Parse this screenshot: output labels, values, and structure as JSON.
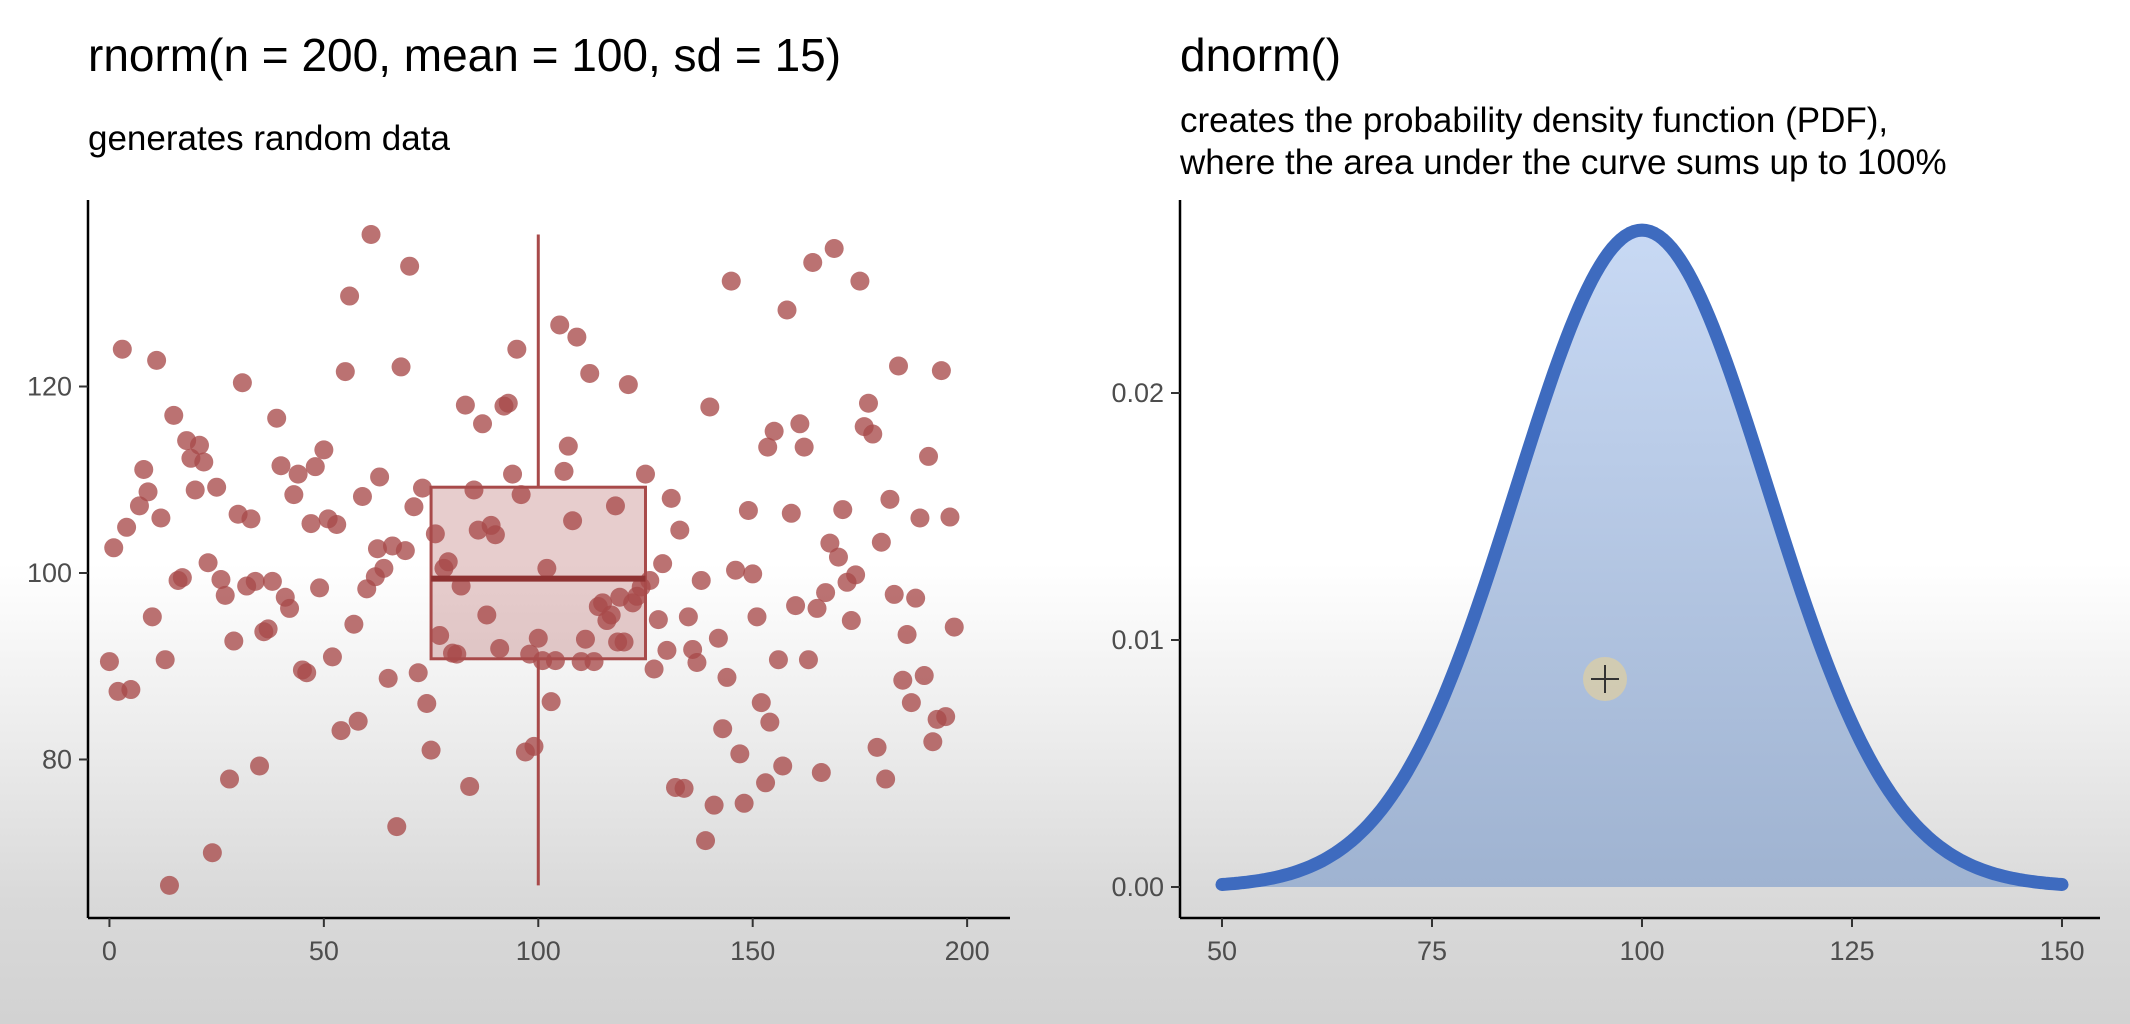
{
  "left": {
    "title": "rnorm(n = 200, mean = 100, sd = 15)",
    "subtitle": "generates random data"
  },
  "right": {
    "title": "dnorm()",
    "subtitle_line1": "creates the probability density function (PDF),",
    "subtitle_line2": "where the area under the curve sums up to 100%"
  },
  "chart_data": [
    {
      "type": "scatter",
      "title": "rnorm(n = 200, mean = 100, sd = 15)",
      "subtitle": "generates random data",
      "xlim": [
        -5,
        210
      ],
      "ylim": [
        63,
        140
      ],
      "x_ticks": [
        0,
        50,
        100,
        150,
        200
      ],
      "y_ticks": [
        80,
        100,
        120
      ],
      "grid": false,
      "point_color": "#a84a4a",
      "boxplot": {
        "x_center": 100,
        "x_range": [
          75,
          125
        ],
        "q1": 90.8,
        "median": 99.4,
        "q3": 109.2,
        "whisker_low": 66.5,
        "whisker_high": 136.3,
        "color": "#a84a4a"
      },
      "points": [
        [
          0,
          90.5
        ],
        [
          1,
          102.7
        ],
        [
          2,
          87.3
        ],
        [
          3,
          124.0
        ],
        [
          4,
          104.9
        ],
        [
          5,
          87.5
        ],
        [
          7,
          107.2
        ],
        [
          8,
          111.1
        ],
        [
          9,
          108.7
        ],
        [
          10,
          95.3
        ],
        [
          11,
          122.8
        ],
        [
          12,
          105.9
        ],
        [
          13,
          90.7
        ],
        [
          14,
          66.5
        ],
        [
          15,
          116.9
        ],
        [
          16,
          99.2
        ],
        [
          17,
          99.5
        ],
        [
          18,
          114.2
        ],
        [
          19,
          112.3
        ],
        [
          20,
          108.9
        ],
        [
          21,
          113.7
        ],
        [
          22,
          111.9
        ],
        [
          23,
          101.1
        ],
        [
          24,
          70.0
        ],
        [
          25,
          109.2
        ],
        [
          26,
          99.3
        ],
        [
          27,
          97.6
        ],
        [
          28,
          77.9
        ],
        [
          29,
          92.7
        ],
        [
          30,
          106.3
        ],
        [
          31,
          120.4
        ],
        [
          32,
          98.6
        ],
        [
          33,
          105.8
        ],
        [
          34,
          99.1
        ],
        [
          35,
          79.3
        ],
        [
          36,
          93.7
        ],
        [
          37,
          94.0
        ],
        [
          38,
          99.1
        ],
        [
          39,
          116.6
        ],
        [
          40,
          111.5
        ],
        [
          41,
          97.4
        ],
        [
          42,
          96.2
        ],
        [
          43,
          108.4
        ],
        [
          44,
          110.6
        ],
        [
          45,
          89.6
        ],
        [
          46,
          89.3
        ],
        [
          47,
          105.3
        ],
        [
          48,
          111.4
        ],
        [
          49,
          98.4
        ],
        [
          50,
          113.2
        ],
        [
          51,
          105.8
        ],
        [
          52,
          91.0
        ],
        [
          53,
          105.2
        ],
        [
          54,
          83.1
        ],
        [
          55,
          121.6
        ],
        [
          56,
          129.7
        ],
        [
          57,
          94.5
        ],
        [
          58,
          84.1
        ],
        [
          59,
          108.2
        ],
        [
          60,
          98.3
        ],
        [
          61,
          136.3
        ],
        [
          62,
          99.6
        ],
        [
          63,
          110.3
        ],
        [
          64,
          100.5
        ],
        [
          65,
          88.7
        ],
        [
          66,
          102.9
        ],
        [
          67,
          72.8
        ],
        [
          68,
          122.1
        ],
        [
          69,
          102.4
        ],
        [
          70,
          132.9
        ],
        [
          71,
          107.1
        ],
        [
          72,
          89.3
        ],
        [
          73,
          109.1
        ],
        [
          74,
          86.0
        ],
        [
          75,
          81.0
        ],
        [
          76,
          104.2
        ],
        [
          77,
          93.3
        ],
        [
          78,
          100.5
        ],
        [
          79,
          101.2
        ],
        [
          80,
          91.4
        ],
        [
          81,
          91.3
        ],
        [
          82,
          98.6
        ],
        [
          83,
          118.0
        ],
        [
          84,
          77.1
        ],
        [
          85,
          108.9
        ],
        [
          86,
          104.6
        ],
        [
          87,
          116.0
        ],
        [
          88,
          95.5
        ],
        [
          89,
          105.1
        ],
        [
          90,
          104.1
        ],
        [
          91,
          91.9
        ],
        [
          92,
          117.9
        ],
        [
          93,
          118.2
        ],
        [
          94,
          110.6
        ],
        [
          95,
          124.0
        ],
        [
          96,
          108.4
        ],
        [
          97,
          80.8
        ],
        [
          98,
          91.3
        ],
        [
          99,
          81.4
        ],
        [
          100,
          93.0
        ],
        [
          101,
          90.6
        ],
        [
          102,
          100.5
        ],
        [
          103,
          86.2
        ],
        [
          104,
          90.6
        ],
        [
          105,
          126.6
        ],
        [
          106,
          110.9
        ],
        [
          107,
          113.6
        ],
        [
          108,
          105.6
        ],
        [
          109,
          125.3
        ],
        [
          110,
          90.5
        ],
        [
          111,
          92.9
        ],
        [
          112,
          121.4
        ],
        [
          113,
          90.5
        ],
        [
          114,
          96.4
        ],
        [
          115,
          96.8
        ],
        [
          116,
          94.9
        ],
        [
          117,
          95.5
        ],
        [
          118,
          107.2
        ],
        [
          119,
          97.4
        ],
        [
          120,
          92.6
        ],
        [
          121,
          120.2
        ],
        [
          122,
          96.8
        ],
        [
          123,
          97.5
        ],
        [
          124,
          98.5
        ],
        [
          125,
          110.6
        ],
        [
          126,
          99.2
        ],
        [
          127,
          89.7
        ],
        [
          128,
          95.0
        ],
        [
          129,
          101.0
        ],
        [
          130,
          91.7
        ],
        [
          131,
          108.0
        ],
        [
          132,
          77.0
        ],
        [
          133,
          104.6
        ],
        [
          134,
          76.9
        ],
        [
          135,
          95.3
        ],
        [
          136,
          91.8
        ],
        [
          137,
          90.4
        ],
        [
          138,
          99.2
        ],
        [
          139,
          71.3
        ],
        [
          140,
          117.8
        ],
        [
          141,
          75.1
        ],
        [
          142,
          93.0
        ],
        [
          143,
          83.3
        ],
        [
          144,
          88.8
        ],
        [
          145,
          131.3
        ],
        [
          146,
          100.3
        ],
        [
          147,
          80.6
        ],
        [
          148,
          75.3
        ],
        [
          149,
          106.7
        ],
        [
          150,
          99.9
        ],
        [
          151,
          95.3
        ],
        [
          152,
          86.1
        ],
        [
          153,
          77.5
        ],
        [
          154,
          84.0
        ],
        [
          155,
          115.2
        ],
        [
          156,
          90.7
        ],
        [
          157,
          79.3
        ],
        [
          158,
          128.2
        ],
        [
          159,
          106.4
        ],
        [
          160,
          96.5
        ],
        [
          161,
          116.0
        ],
        [
          162,
          113.5
        ],
        [
          163,
          90.7
        ],
        [
          164,
          133.3
        ],
        [
          165,
          96.2
        ],
        [
          166,
          78.6
        ],
        [
          167,
          97.9
        ],
        [
          168,
          103.2
        ],
        [
          169,
          134.8
        ],
        [
          170,
          101.7
        ],
        [
          171,
          106.8
        ],
        [
          172,
          99.0
        ],
        [
          173,
          94.9
        ],
        [
          174,
          99.8
        ],
        [
          175,
          131.3
        ],
        [
          176,
          115.7
        ],
        [
          177,
          118.2
        ],
        [
          178,
          114.9
        ],
        [
          179,
          81.3
        ],
        [
          180,
          103.3
        ],
        [
          181,
          77.9
        ],
        [
          182,
          107.9
        ],
        [
          183,
          97.7
        ],
        [
          184,
          122.2
        ],
        [
          185,
          88.5
        ],
        [
          186,
          93.4
        ],
        [
          187,
          86.1
        ],
        [
          188,
          97.3
        ],
        [
          189,
          105.9
        ],
        [
          190,
          89.0
        ],
        [
          191,
          112.5
        ],
        [
          192,
          81.9
        ],
        [
          193,
          84.3
        ],
        [
          194,
          121.7
        ],
        [
          195,
          84.6
        ],
        [
          196,
          106.0
        ],
        [
          197,
          94.2
        ],
        [
          62.5,
          102.6
        ],
        [
          118.5,
          92.6
        ],
        [
          153.5,
          113.5
        ]
      ]
    },
    {
      "type": "area",
      "title": "dnorm()",
      "subtitle": "creates the probability density function (PDF), where the area under the curve sums up to 100%",
      "function": "dnorm",
      "mean": 100,
      "sd": 15,
      "xlim": [
        50,
        150
      ],
      "ylim": [
        0,
        0.0266
      ],
      "x_ticks": [
        50,
        75,
        100,
        125,
        150
      ],
      "y_ticks": [
        0.0,
        0.01,
        0.02
      ],
      "y_tick_labels": [
        "0.00",
        "0.01",
        "0.02"
      ],
      "grid": false,
      "line_color": "#3e6bbf",
      "fill_color_top": "#c8d9f4",
      "fill_color_bottom": "#9fb3d1"
    }
  ]
}
